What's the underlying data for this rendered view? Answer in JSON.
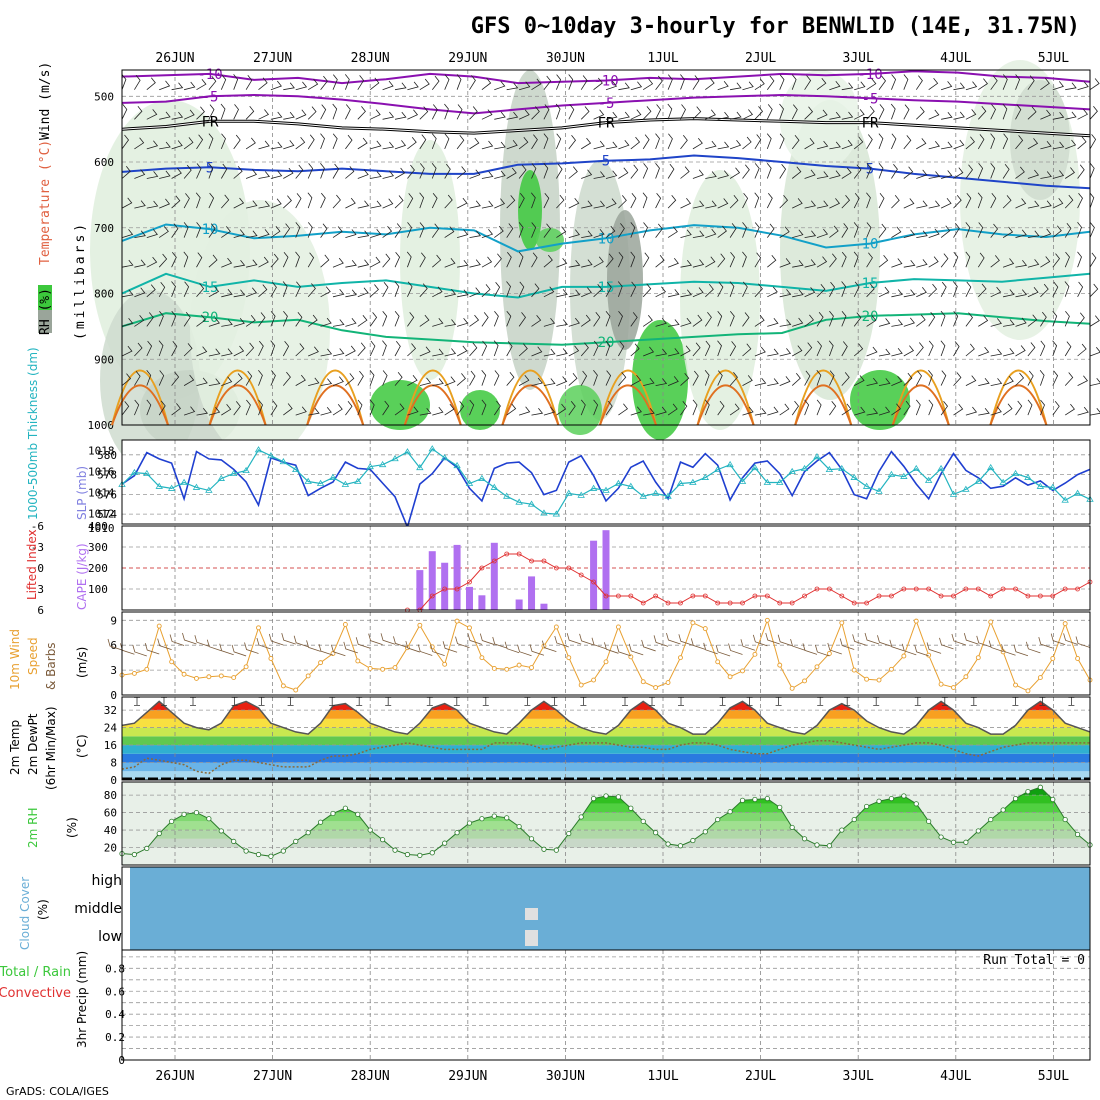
{
  "header": {
    "title": "GFS 0~10day 3-hourly for BENWLID (14E, 31.75N)",
    "credit": "GrADS: COLA/IGES"
  },
  "dates": [
    "26JUN",
    "27JUN",
    "28JUN",
    "29JUN",
    "30JUN",
    "1JUL",
    "2JUL",
    "3JUL",
    "4JUL",
    "5JUL"
  ],
  "colors": {
    "rh_green": "#3cc83c",
    "rh_grey": "#9aa59a",
    "temp_purple": "#8a10b0",
    "temp_blue": "#1f44c8",
    "temp_cyan": "#12a0c8",
    "teal": "#10b4a8",
    "sea_green": "#12b478",
    "orange": "#e8a020",
    "slp_blue": "#1f3fd0",
    "thickness_cyan": "#23b4c0",
    "lifted_red": "#e03030",
    "cape_purple": "#b070f0",
    "wind_orange": "#e8a030",
    "barb_brown": "#7a5a3a",
    "cloud_blue": "#6aaed6"
  },
  "panel_labels": {
    "upper": {
      "rh": "RH (%)",
      "temperature": "Temperature (°C)",
      "wind": "Wind (m/s)",
      "pressure": "(millibars)"
    },
    "slp": {
      "thickness": "1000-500mb Thickness (dm)",
      "slp": "SLP (mb)"
    },
    "cape": {
      "lifted": "Lifted Index",
      "cape": "CAPE (J/kg)"
    },
    "wind10": {
      "line1": "10m Wind",
      "line2": "Speed",
      "line3": "& Barbs",
      "unit": "(m/s)"
    },
    "temp2m": {
      "line1": "2m Temp",
      "line2": "2m DewPt",
      "line3": "(6hr Min/Max)",
      "unit": "(°C)"
    },
    "rh2m": {
      "name": "2m RH",
      "unit": "(%)"
    },
    "cloud": {
      "name": "Cloud Cover",
      "unit": "(%)"
    },
    "precip": {
      "total": "Total / Rain",
      "conv": "Convective",
      "name": "3hr Precip (mm)",
      "run_total": "Run Total = 0"
    }
  },
  "chart_data": [
    {
      "type": "contour",
      "panel": "upper-air cross section",
      "y_axis": "pressure (mb)",
      "yticks": [
        500,
        600,
        700,
        800,
        900,
        1000
      ],
      "ylim": [
        460,
        1000
      ],
      "contour_labels": [
        "-10",
        "-5",
        "FR",
        "5",
        "10",
        "15",
        "20"
      ],
      "series": [
        {
          "name": "-10",
          "values": [
            470,
            468,
            466,
            475,
            472,
            480,
            474,
            466,
            470,
            480,
            478,
            476,
            472,
            474,
            470,
            466,
            468,
            466,
            462,
            464,
            470,
            472,
            478
          ]
        },
        {
          "name": "-5",
          "values": [
            510,
            508,
            500,
            498,
            500,
            505,
            512,
            520,
            526,
            520,
            514,
            510,
            506,
            502,
            500,
            498,
            500,
            503,
            506,
            508,
            512,
            516,
            520
          ]
        },
        {
          "name": "FR",
          "values": [
            550,
            546,
            538,
            538,
            542,
            548,
            550,
            554,
            556,
            552,
            548,
            540,
            536,
            534,
            536,
            538,
            540,
            540,
            544,
            548,
            552,
            556,
            560
          ]
        },
        {
          "name": "5",
          "values": [
            615,
            610,
            608,
            612,
            614,
            610,
            614,
            618,
            618,
            604,
            602,
            598,
            596,
            590,
            594,
            600,
            606,
            610,
            618,
            624,
            630,
            636,
            640
          ]
        },
        {
          "name": "10",
          "values": [
            720,
            695,
            702,
            716,
            712,
            706,
            710,
            700,
            704,
            736,
            724,
            716,
            704,
            696,
            700,
            712,
            730,
            724,
            710,
            702,
            710,
            714,
            706
          ]
        },
        {
          "name": "15",
          "values": [
            800,
            770,
            790,
            780,
            790,
            784,
            780,
            790,
            800,
            806,
            790,
            790,
            786,
            782,
            784,
            790,
            796,
            784,
            778,
            780,
            782,
            776,
            770
          ]
        },
        {
          "name": "20",
          "values": [
            850,
            830,
            836,
            844,
            840,
            856,
            866,
            870,
            874,
            876,
            878,
            874,
            870,
            866,
            862,
            860,
            840,
            834,
            832,
            830,
            836,
            842,
            846
          ]
        }
      ]
    },
    {
      "type": "line",
      "panel": "SLP and thickness",
      "yticks_left": [
        574,
        576,
        578,
        580
      ],
      "yticks_right": [
        1012,
        1014,
        1016,
        1018
      ],
      "series": [
        {
          "name": "SLP (mb)",
          "axis": "right",
          "values": [
            1014.8,
            1015.6,
            1017.8,
            1017.2,
            1016.8,
            1013.4,
            1017.9,
            1017.2,
            1017.1,
            1016.2,
            1015.0,
            1012.8,
            1017.3,
            1016.9,
            1016.6,
            1013.7,
            1014.4,
            1015.0,
            1016.9,
            1016.3,
            1016.2,
            1014.9,
            1013.6,
            1010.7,
            1014.8,
            1015.8,
            1017.3,
            1016.4,
            1014.4,
            1013.2,
            1016.3,
            1016.8,
            1016.9,
            1015.9,
            1013.8,
            1014.2,
            1016.9,
            1017.5,
            1015.6,
            1013.2,
            1014.4,
            1016.4,
            1017.0,
            1015.0,
            1013.4,
            1016.9,
            1016.4,
            1017.7,
            1016.6,
            1013.3,
            1015.4,
            1016.8,
            1017.0,
            1015.8,
            1013.7,
            1016.0,
            1017.0,
            1017.8,
            1016.2,
            1013.8,
            1013.4,
            1016.0,
            1017.9,
            1016.5,
            1014.8,
            1013.4,
            1015.8,
            1017.7,
            1016.1,
            1015.4,
            1014.4,
            1014.6,
            1015.4,
            1014.7,
            1015.1,
            1014.2,
            1014.9,
            1015.7,
            1016.2
          ]
        },
        {
          "name": "1000-500mb Thickness (dm)",
          "axis": "left",
          "values": [
            577.0,
            578.2,
            578.1,
            576.8,
            576.6,
            577.2,
            576.7,
            576.4,
            577.6,
            578.1,
            578.4,
            580.5,
            579.9,
            579.3,
            578.5,
            577.3,
            577.1,
            577.7,
            577.0,
            577.3,
            578.8,
            579.0,
            579.6,
            580.3,
            578.7,
            580.6,
            579.7,
            578.9,
            577.1,
            577.6,
            576.7,
            575.8,
            575.2,
            575.0,
            574.1,
            574.0,
            576.1,
            575.9,
            576.6,
            576.4,
            577.1,
            576.8,
            575.8,
            576.1,
            575.8,
            577.1,
            577.2,
            577.7,
            578.5,
            579.0,
            577.3,
            578.7,
            577.2,
            577.2,
            578.3,
            578.6,
            579.8,
            578.5,
            578.6,
            577.7,
            576.8,
            576.3,
            578.0,
            577.8,
            578.6,
            577.4,
            578.6,
            576.0,
            576.5,
            577.3,
            578.7,
            577.2,
            578.1,
            577.7,
            576.8,
            576.7,
            575.4,
            576.1,
            575.5
          ]
        }
      ]
    },
    {
      "type": "bar",
      "panel": "CAPE and Lifted Index",
      "yticks_left": [
        -6,
        -3,
        0,
        3,
        6
      ],
      "yticks_right": [
        100,
        200,
        300,
        400
      ],
      "series": [
        {
          "name": "CAPE (J/kg)",
          "axis": "right",
          "values": [
            0,
            0,
            0,
            0,
            0,
            0,
            0,
            0,
            0,
            0,
            0,
            0,
            0,
            0,
            0,
            0,
            0,
            0,
            0,
            0,
            0,
            0,
            0,
            0,
            190,
            280,
            225,
            310,
            110,
            70,
            320,
            0,
            50,
            160,
            30,
            0,
            0,
            0,
            330,
            380,
            0,
            0,
            0,
            0,
            0,
            0,
            0,
            0,
            0,
            0,
            0,
            0,
            0,
            0,
            0,
            0,
            0,
            0,
            0,
            0,
            0,
            0,
            0,
            0,
            0,
            0,
            0,
            0,
            0,
            0,
            0,
            0,
            0,
            0,
            0,
            0,
            0,
            0,
            0,
            0
          ]
        },
        {
          "name": "Lifted Index",
          "axis": "left",
          "values": [
            6,
            6,
            6,
            6,
            6,
            6,
            6,
            6,
            6,
            6,
            6,
            6,
            6,
            6,
            6,
            6,
            6,
            6,
            6,
            6,
            6,
            6,
            6,
            6,
            6,
            4,
            3,
            3,
            2,
            0,
            -1,
            -2,
            -2,
            -1,
            -1,
            0,
            0,
            1,
            2,
            4,
            4,
            4,
            5,
            4,
            5,
            5,
            4,
            4,
            5,
            5,
            5,
            4,
            4,
            5,
            5,
            4,
            3,
            3,
            4,
            5,
            5,
            4,
            4,
            3,
            3,
            3,
            4,
            4,
            3,
            3,
            4,
            3,
            3,
            4,
            4,
            4,
            3,
            3,
            2
          ]
        }
      ]
    },
    {
      "type": "line",
      "panel": "10m wind",
      "yticks": [
        0,
        3,
        6,
        9
      ],
      "series": [
        {
          "name": "10m Wind Speed (m/s)",
          "values": [
            2.4,
            2.6,
            3.1,
            8.3,
            4.0,
            2.5,
            2.0,
            2.2,
            2.3,
            2.1,
            3.4,
            8.1,
            4.4,
            1.1,
            0.6,
            2.3,
            3.9,
            5.0,
            8.5,
            4.1,
            3.2,
            3.1,
            3.3,
            5.7,
            8.4,
            5.8,
            3.7,
            8.9,
            8.1,
            4.5,
            3.2,
            3.1,
            3.6,
            3.3,
            5.9,
            8.2,
            4.5,
            1.2,
            1.8,
            4.0,
            8.2,
            4.6,
            1.6,
            0.9,
            1.5,
            4.5,
            8.7,
            8.0,
            4.0,
            2.2,
            2.9,
            4.9,
            9.0,
            3.6,
            0.8,
            1.7,
            3.4,
            5.0,
            8.7,
            3.0,
            1.9,
            1.8,
            3.1,
            4.7,
            8.9,
            4.8,
            1.3,
            0.9,
            2.2,
            4.5,
            8.8,
            5.2,
            1.2,
            0.5,
            2.1,
            4.4,
            8.6,
            4.4,
            1.8
          ]
        }
      ]
    },
    {
      "type": "line",
      "panel": "2m temperature and dew point",
      "yticks": [
        0,
        8,
        16,
        24,
        32
      ],
      "series": [
        {
          "name": "2m Temp (°C)",
          "values": [
            25,
            26,
            31,
            36,
            31,
            26,
            24,
            23,
            26,
            34,
            36,
            33,
            26,
            24,
            22,
            21,
            26,
            34,
            35,
            31,
            26,
            24,
            22,
            21,
            26,
            33,
            35,
            32,
            26,
            24,
            22,
            21,
            26,
            32,
            36,
            32,
            27,
            24,
            22,
            21,
            25,
            32,
            36,
            32,
            26,
            24,
            21,
            21,
            26,
            33,
            36,
            32,
            26,
            24,
            22,
            21,
            25,
            32,
            35,
            32,
            27,
            24,
            22,
            21,
            25,
            32,
            36,
            32,
            26,
            24,
            21,
            21,
            25,
            32,
            36,
            32,
            26,
            24,
            22
          ]
        },
        {
          "name": "2m DewPt (°C)",
          "values": [
            5,
            6,
            10,
            9,
            8,
            7,
            4,
            3,
            7,
            9,
            9,
            8,
            7,
            6,
            6,
            6,
            9,
            11,
            11,
            12,
            14,
            15,
            16,
            17,
            16,
            15,
            14,
            14,
            14,
            14,
            17,
            17,
            17,
            16,
            14,
            15,
            16,
            17,
            17,
            17,
            16,
            15,
            15,
            14,
            14,
            16,
            17,
            17,
            16,
            14,
            13,
            12,
            12,
            14,
            16,
            17,
            18,
            18,
            17,
            16,
            15,
            14,
            15,
            16,
            17,
            17,
            16,
            14,
            12,
            11,
            13,
            15,
            16,
            17,
            17,
            17,
            17,
            17,
            17
          ]
        }
      ]
    },
    {
      "type": "area",
      "panel": "2m relative humidity",
      "yticks": [
        20,
        40,
        60,
        80
      ],
      "series": [
        {
          "name": "2m RH (%)",
          "values": [
            13,
            12,
            19,
            36,
            50,
            58,
            60,
            53,
            39,
            27,
            16,
            12,
            10,
            16,
            27,
            37,
            49,
            59,
            65,
            58,
            40,
            29,
            17,
            12,
            11,
            14,
            25,
            37,
            48,
            53,
            56,
            54,
            44,
            30,
            18,
            17,
            36,
            55,
            76,
            79,
            78,
            65,
            50,
            37,
            24,
            22,
            28,
            38,
            52,
            61,
            74,
            75,
            76,
            66,
            43,
            30,
            23,
            22,
            40,
            52,
            67,
            73,
            76,
            79,
            70,
            50,
            32,
            26,
            26,
            39,
            52,
            63,
            76,
            84,
            89,
            75,
            52,
            35,
            23
          ]
        }
      ]
    },
    {
      "type": "heatmap",
      "panel": "cloud cover",
      "categories": [
        "high",
        "middle",
        "low"
      ],
      "values_percent": {
        "high": 0,
        "middle": 0,
        "low": 0
      }
    },
    {
      "type": "bar",
      "panel": "3hr precipitation",
      "yticks": [
        0,
        0.2,
        0.4,
        0.6,
        0.8
      ],
      "series": [
        {
          "name": "3hr Precip (mm)",
          "values": []
        }
      ]
    }
  ]
}
